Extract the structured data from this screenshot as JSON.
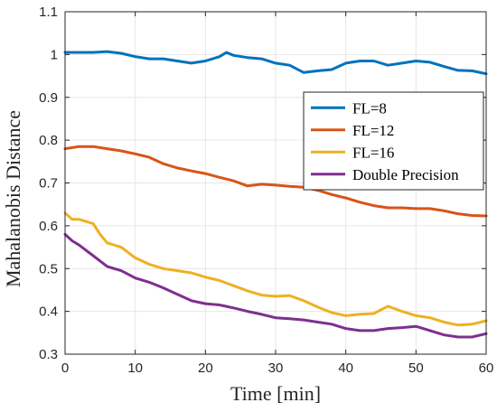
{
  "chart_data": {
    "type": "line",
    "title": "",
    "xlabel": "Time [min]",
    "ylabel": "Mahalanobis Distance",
    "xlim": [
      0,
      60
    ],
    "ylim": [
      0.3,
      1.1
    ],
    "xticks": [
      0,
      10,
      20,
      30,
      40,
      50,
      60
    ],
    "xtick_labels": [
      "0",
      "10",
      "20",
      "30",
      "40",
      "50",
      "60"
    ],
    "yticks": [
      0.3,
      0.4,
      0.5,
      0.6,
      0.7,
      0.8,
      0.9,
      1.0,
      1.1
    ],
    "ytick_labels": [
      "0.3",
      "0.4",
      "0.5",
      "0.6",
      "0.7",
      "0.8",
      "0.9",
      "1",
      "1.1"
    ],
    "grid": true,
    "legend_position": "upper-right",
    "series": [
      {
        "name": "FL=8",
        "color": "#0072BD",
        "x": [
          0,
          2,
          4,
          6,
          8,
          10,
          12,
          14,
          16,
          18,
          20,
          22,
          23,
          24,
          26,
          28,
          30,
          32,
          34,
          36,
          38,
          40,
          42,
          44,
          46,
          48,
          50,
          52,
          54,
          56,
          58,
          60
        ],
        "y": [
          1.005,
          1.005,
          1.005,
          1.007,
          1.003,
          0.995,
          0.99,
          0.99,
          0.985,
          0.98,
          0.985,
          0.995,
          1.005,
          0.998,
          0.993,
          0.99,
          0.98,
          0.975,
          0.958,
          0.962,
          0.965,
          0.98,
          0.985,
          0.985,
          0.975,
          0.98,
          0.985,
          0.982,
          0.972,
          0.963,
          0.962,
          0.955
        ]
      },
      {
        "name": "FL=12",
        "color": "#D95319",
        "x": [
          0,
          2,
          4,
          6,
          8,
          10,
          12,
          14,
          16,
          18,
          20,
          22,
          24,
          26,
          28,
          30,
          32,
          34,
          36,
          38,
          40,
          42,
          44,
          46,
          48,
          50,
          52,
          54,
          56,
          58,
          60
        ],
        "y": [
          0.78,
          0.785,
          0.785,
          0.78,
          0.775,
          0.768,
          0.76,
          0.745,
          0.735,
          0.728,
          0.722,
          0.713,
          0.705,
          0.693,
          0.697,
          0.695,
          0.692,
          0.69,
          0.683,
          0.673,
          0.665,
          0.655,
          0.647,
          0.642,
          0.642,
          0.64,
          0.64,
          0.635,
          0.628,
          0.624,
          0.623
        ]
      },
      {
        "name": "FL=16",
        "color": "#EDB120",
        "x": [
          0,
          1,
          2,
          4,
          5,
          6,
          8,
          10,
          12,
          14,
          16,
          18,
          20,
          22,
          24,
          26,
          28,
          30,
          32,
          34,
          36,
          38,
          40,
          42,
          44,
          46,
          48,
          50,
          52,
          54,
          56,
          58,
          60
        ],
        "y": [
          0.63,
          0.615,
          0.615,
          0.605,
          0.58,
          0.56,
          0.55,
          0.525,
          0.51,
          0.5,
          0.495,
          0.49,
          0.48,
          0.472,
          0.46,
          0.448,
          0.438,
          0.435,
          0.437,
          0.425,
          0.41,
          0.397,
          0.39,
          0.393,
          0.395,
          0.412,
          0.4,
          0.39,
          0.385,
          0.375,
          0.368,
          0.37,
          0.378
        ]
      },
      {
        "name": "Double Precision",
        "color": "#7E2F8E",
        "x": [
          0,
          1,
          2,
          4,
          6,
          8,
          10,
          12,
          14,
          16,
          18,
          20,
          22,
          24,
          26,
          28,
          30,
          32,
          34,
          36,
          38,
          40,
          42,
          44,
          46,
          48,
          50,
          52,
          54,
          56,
          58,
          60
        ],
        "y": [
          0.58,
          0.565,
          0.555,
          0.53,
          0.505,
          0.495,
          0.478,
          0.468,
          0.455,
          0.44,
          0.425,
          0.418,
          0.415,
          0.408,
          0.4,
          0.393,
          0.385,
          0.383,
          0.38,
          0.375,
          0.37,
          0.36,
          0.355,
          0.355,
          0.36,
          0.362,
          0.365,
          0.355,
          0.345,
          0.34,
          0.34,
          0.348
        ]
      }
    ]
  }
}
